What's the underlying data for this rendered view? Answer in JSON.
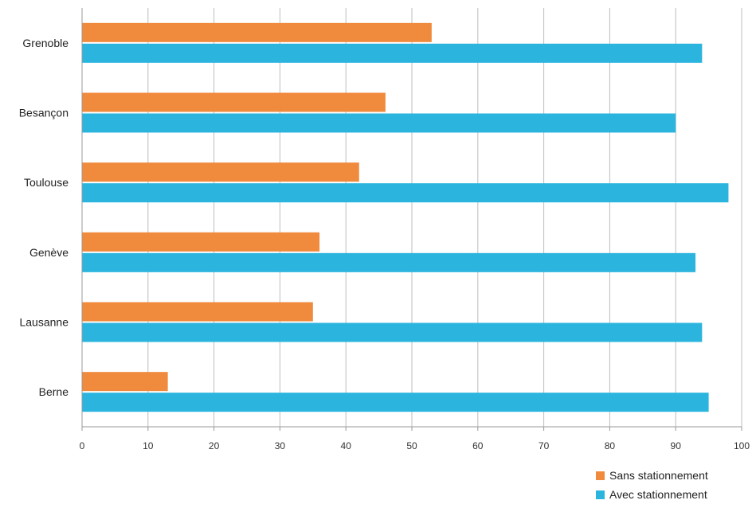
{
  "chart_data": {
    "type": "bar",
    "orientation": "horizontal",
    "categories": [
      "Grenoble",
      "Besançon",
      "Toulouse",
      "Genève",
      "Lausanne",
      "Berne"
    ],
    "series": [
      {
        "name": "Sans stationnement",
        "color": "#f08a3c",
        "values": [
          53,
          46,
          42,
          36,
          35,
          13
        ]
      },
      {
        "name": "Avec stationnement",
        "color": "#2bb5de",
        "values": [
          94,
          90,
          98,
          93,
          94,
          95
        ]
      }
    ],
    "xlim": [
      0,
      100
    ],
    "xticks": [
      "0",
      "10",
      "20",
      "30",
      "40",
      "50",
      "60",
      "70",
      "80",
      "90",
      "100"
    ],
    "grid": "vertical",
    "legend_position": "bottom-right",
    "title": "",
    "xlabel": "",
    "ylabel": ""
  }
}
